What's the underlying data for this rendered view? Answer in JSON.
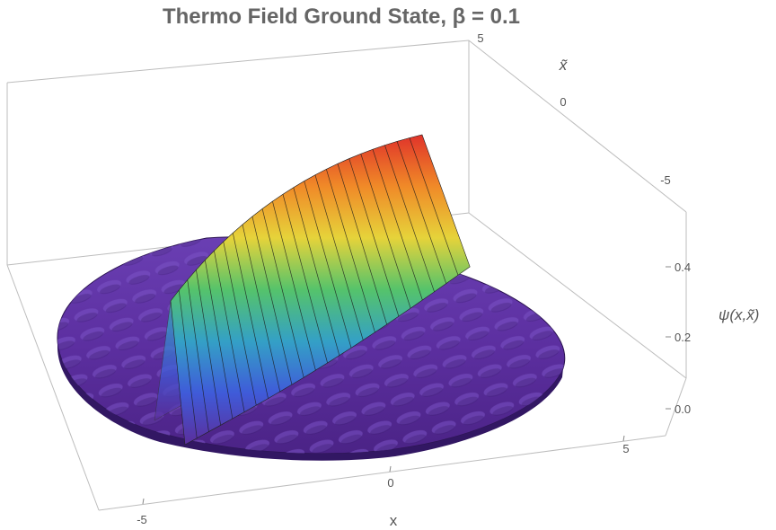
{
  "chart_data": {
    "type": "surface3d",
    "title": "Thermo Field Ground State, β = 0.1",
    "xlabel": "x",
    "ylabel": "x̃",
    "zlabel": "ψ(x,x̃)",
    "x_ticks": [
      "-5",
      "0",
      "5"
    ],
    "y_ticks": [
      "5",
      "0",
      "-5"
    ],
    "z_ticks": [
      "0.0",
      "0.2",
      "0.4"
    ],
    "xlim": [
      -6,
      6
    ],
    "ylim": [
      -6,
      6
    ],
    "zlim": [
      -0.03,
      0.5
    ],
    "domain": "disk of radius 6",
    "ridge_peak": 0.45,
    "colormap": [
      "#5b2e9c",
      "#3f5bd9",
      "#34a0c6",
      "#55c36b",
      "#e6d33a",
      "#f08a28",
      "#e0332a"
    ]
  }
}
